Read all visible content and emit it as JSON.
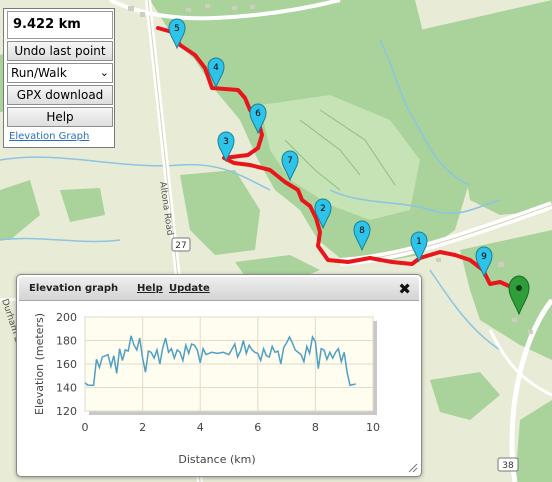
{
  "panel": {
    "distance": "9.422 km",
    "undo_label": "Undo last point",
    "mode_selected": "Run/Walk",
    "gpx_label": "GPX download",
    "help_label": "Help",
    "elevation_link": "Elevation Graph"
  },
  "map": {
    "road_labels": [
      "Altona Road",
      "27",
      "38",
      "Durham Line"
    ],
    "waypoints": [
      "5",
      "4",
      "6",
      "3",
      "7",
      "2",
      "8",
      "1",
      "9"
    ],
    "colors": {
      "route": "#e8151b",
      "waypoint": "#2ec3e8",
      "forest": "#a9d39a",
      "golf": "#c5e3b4",
      "water": "#a7d3ea"
    }
  },
  "elevation": {
    "title": "Elevation graph",
    "help_label": "Help",
    "update_label": "Update",
    "close_icon": "close-icon",
    "chart_data": {
      "type": "line",
      "xlabel": "Distance (km)",
      "ylabel": "Elevation (meters)",
      "xlim": [
        0,
        10
      ],
      "ylim": [
        120,
        200
      ],
      "xticks": [
        "0",
        "2",
        "4",
        "6",
        "8",
        "10"
      ],
      "yticks": [
        "120",
        "140",
        "160",
        "180",
        "200"
      ],
      "grid": true,
      "series": [
        {
          "color": "#4f9fc4",
          "x": [
            0.0,
            0.1,
            0.3,
            0.4,
            0.5,
            0.6,
            0.8,
            0.9,
            1.0,
            1.1,
            1.2,
            1.3,
            1.4,
            1.5,
            1.6,
            1.7,
            1.8,
            1.9,
            2.0,
            2.1,
            2.2,
            2.3,
            2.4,
            2.5,
            2.6,
            2.7,
            2.8,
            2.9,
            3.0,
            3.1,
            3.2,
            3.3,
            3.4,
            3.5,
            3.6,
            3.7,
            3.8,
            3.9,
            4.0,
            4.1,
            4.2,
            4.4,
            4.6,
            4.8,
            5.0,
            5.2,
            5.3,
            5.4,
            5.5,
            5.6,
            5.7,
            5.8,
            5.9,
            6.0,
            6.1,
            6.2,
            6.3,
            6.4,
            6.5,
            6.6,
            6.7,
            6.8,
            6.9,
            7.0,
            7.1,
            7.2,
            7.3,
            7.4,
            7.5,
            7.6,
            7.7,
            7.8,
            7.9,
            8.0,
            8.1,
            8.2,
            8.3,
            8.4,
            8.5,
            8.6,
            8.7,
            8.8,
            8.9,
            9.0,
            9.1,
            9.2,
            9.4
          ],
          "y": [
            144,
            142,
            142,
            164,
            157,
            166,
            168,
            158,
            167,
            152,
            173,
            163,
            172,
            171,
            184,
            176,
            172,
            182,
            165,
            153,
            171,
            170,
            165,
            172,
            160,
            174,
            182,
            170,
            173,
            165,
            172,
            170,
            163,
            176,
            169,
            177,
            176,
            172,
            161,
            173,
            168,
            170,
            169,
            170,
            168,
            177,
            166,
            171,
            180,
            169,
            176,
            172,
            170,
            169,
            163,
            173,
            167,
            166,
            175,
            170,
            171,
            160,
            174,
            178,
            183,
            178,
            172,
            170,
            168,
            162,
            175,
            169,
            183,
            179,
            156,
            173,
            172,
            164,
            170,
            165,
            170,
            173,
            162,
            170,
            153,
            142,
            143
          ]
        }
      ]
    }
  }
}
